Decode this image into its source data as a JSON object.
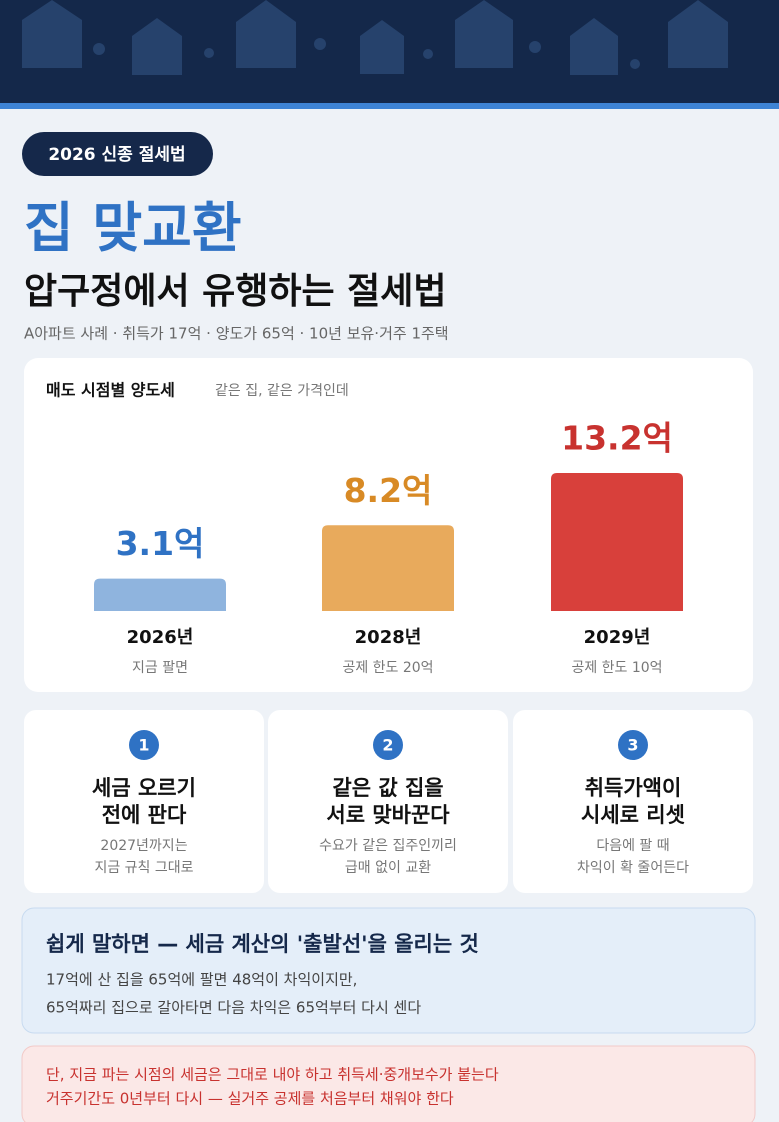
{
  "badge": "2026 신종 절세법",
  "title": "집 맞교환",
  "subtitle": "압구정에서 유행하는 절세법",
  "caption": "A아파트 사례 · 취득가 17억 · 양도가 65억 · 10년 보유·거주 1주택",
  "chart_data": {
    "type": "bar",
    "title": "매도 시점별 양도세",
    "note": "같은 집, 같은 가격인데",
    "categories": [
      "2026년",
      "2028년",
      "2029년"
    ],
    "sublabels": [
      "지금 팔면",
      "공제 한도 20억",
      "공제 한도 10억"
    ],
    "values": [
      3.1,
      8.2,
      13.2
    ],
    "value_labels": [
      "3.1억",
      "8.2억",
      "13.2억"
    ],
    "colors": [
      "#8fb4de",
      "#e8aa5c",
      "#d8403b"
    ],
    "label_colors": [
      "#2f72c4",
      "#d88a25",
      "#c8322f"
    ]
  },
  "steps": [
    {
      "number": "1",
      "title": [
        "세금 오르기",
        "전에 판다"
      ],
      "desc": [
        "2027년까지는",
        "지금 규칙 그대로"
      ]
    },
    {
      "number": "2",
      "title": [
        "같은 값 집을",
        "서로 맞바꾼다"
      ],
      "desc": [
        "수요가 같은 집주인끼리",
        "급매 없이 교환"
      ]
    },
    {
      "number": "3",
      "title": [
        "취득가액이",
        "시세로 리셋"
      ],
      "desc": [
        "다음에 팔 때",
        "차익이 확 줄어든다"
      ]
    }
  ],
  "summary": {
    "heading": "쉽게 말하면 — 세금 계산의 '출발선'을 올리는 것",
    "lines": [
      "17억에 산 집을 65억에 팔면 48억이 차익이지만,",
      "65억짜리 집으로 갈아타면 다음 차익은 65억부터 다시 센다"
    ]
  },
  "warning": {
    "lines": [
      "단, 지금 파는 시점의 세금은 그대로 내야 하고 취득세·중개보수가 붙는다",
      "거주기간도 0년부터 다시 — 실거주 공제를 처음부터 채워야 한다"
    ]
  }
}
